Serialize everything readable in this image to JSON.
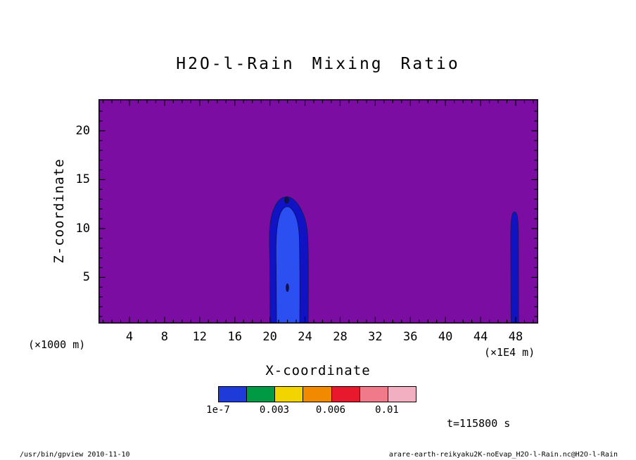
{
  "title": "H2O-l-Rain Mixing Ratio",
  "axes": {
    "y_label": "Z-coordinate",
    "x_label": "X-coordinate",
    "y_ticks": [
      "20",
      "15",
      "10",
      "5"
    ],
    "x_ticks": [
      "4",
      "8",
      "12",
      "16",
      "20",
      "24",
      "28",
      "32",
      "36",
      "40",
      "44",
      "48"
    ],
    "y_unit": "(×1000 m)",
    "x_unit": "(×1E4 m)"
  },
  "colors": {
    "background": "#7c0da3",
    "level1_outer": "#0f13c4",
    "level1_inner": "#2b4ff0",
    "contour_line": "#181860",
    "speck": "#10104a",
    "frame": "#000000"
  },
  "colorbar": {
    "labels": [
      "1e-7",
      "0.003",
      "0.006",
      "0.01"
    ],
    "colors": [
      "#1e3ad8",
      "#009a44",
      "#f2d500",
      "#f28a00",
      "#e8192c",
      "#f07a8a",
      "#f2afc2"
    ]
  },
  "annotations": {
    "time": "t=115800 s"
  },
  "footer": {
    "left": "/usr/bin/gpview  2010-11-10",
    "right": "arare-earth-reikyaku2K-noEvap_H2O-l-Rain.nc@H2O-l-Rain"
  },
  "chart_data": {
    "type": "heatmap",
    "subtype": "filled-contour",
    "title": "H2O-l-Rain Mixing Ratio",
    "xlabel": "X-coordinate",
    "ylabel": "Z-coordinate",
    "x_unit": "×1E4 m",
    "y_unit": "×1000 m",
    "xlim": [
      0,
      50
    ],
    "ylim": [
      0,
      23
    ],
    "x_ticks": [
      4,
      8,
      12,
      16,
      20,
      24,
      28,
      32,
      36,
      40,
      44,
      48
    ],
    "y_ticks": [
      5,
      10,
      15,
      20
    ],
    "contour_levels": [
      "1e-7",
      "0.003",
      "0.006",
      "0.01"
    ],
    "background_value": "below 1e-7 (purple field)",
    "features": [
      {
        "name": "main rain shaft",
        "x_range": [
          19.9,
          24.5
        ],
        "z_range": [
          0,
          13.2
        ],
        "core": {
          "x_range": [
            20.4,
            23.4
          ],
          "z_range": [
            0,
            12.1
          ]
        },
        "peak_level": "~0.003 near z=13 and z=8"
      },
      {
        "name": "secondary narrow rain shaft",
        "x_range": [
          47.4,
          48.3
        ],
        "z_range": [
          0,
          11.6
        ],
        "peak_level": "1e-7 to 0.003"
      }
    ],
    "time": "t=115800 s",
    "legend_position": "bottom horizontal colorbar",
    "grid": false
  }
}
